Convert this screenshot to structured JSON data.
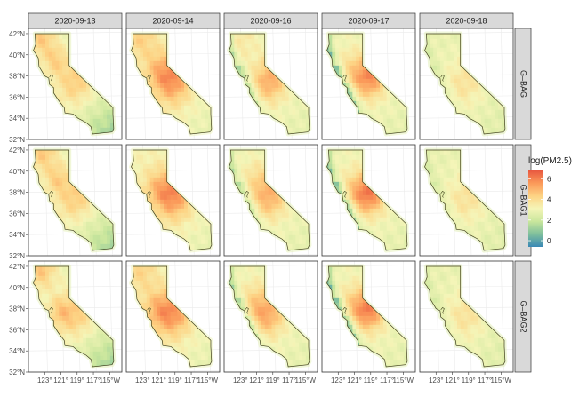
{
  "chart_data": {
    "type": "heatmap",
    "columns": [
      "2020-09-13",
      "2020-09-14",
      "2020-09-16",
      "2020-09-17",
      "2020-09-18"
    ],
    "rows": [
      "G–BAG",
      "G–BAG1",
      "G–BAG2"
    ],
    "y_ticks": [
      "42°N",
      "40°N",
      "38°N",
      "36°N",
      "34°N",
      "32°N"
    ],
    "y_tick_values": [
      42,
      40,
      38,
      36,
      34,
      32
    ],
    "x_ticks": [
      "123°",
      "121°",
      "119°",
      "117°",
      "115°W"
    ],
    "x_tick_values": [
      -123,
      -121,
      -119,
      -117,
      -115
    ],
    "xlim": [
      -125,
      -113.5
    ],
    "ylim": [
      32,
      42.5
    ],
    "legend": {
      "title": "log(PM2.5)",
      "ticks": [
        "0",
        "2",
        "4",
        "6"
      ],
      "tick_values": [
        0,
        2,
        4,
        6
      ],
      "range": [
        -0.6,
        6.8
      ],
      "colors": [
        "#3a88b5",
        "#7fbf9c",
        "#c9e69c",
        "#f5f5b8",
        "#fdd384",
        "#fb9a5a",
        "#e8573f"
      ]
    },
    "panels": [
      {
        "row": 0,
        "col": 0,
        "base": 2.9,
        "south": 2.0,
        "coast": 0,
        "blobs": [
          [
            -119.3,
            37.4,
            1.5,
            1.6
          ],
          [
            -123.5,
            41.7,
            1.6,
            1.3
          ],
          [
            -121.7,
            39.5,
            1.2,
            1.0
          ]
        ]
      },
      {
        "row": 0,
        "col": 1,
        "base": 3.2,
        "south": 0.6,
        "coast": 0,
        "blobs": [
          [
            -119.3,
            37.5,
            2.3,
            1.5
          ],
          [
            -121.0,
            38.6,
            1.2,
            1.3
          ],
          [
            -123.2,
            41.6,
            1.1,
            1.4
          ]
        ]
      },
      {
        "row": 0,
        "col": 2,
        "base": 3.0,
        "south": 0.4,
        "coast": 1.8,
        "blobs": [
          [
            -119.4,
            37.6,
            2.2,
            1.4
          ],
          [
            -123.0,
            41.5,
            0.6,
            1.4
          ]
        ]
      },
      {
        "row": 0,
        "col": 3,
        "base": 3.0,
        "south": 0.4,
        "coast": 2.6,
        "blobs": [
          [
            -119.1,
            37.8,
            2.6,
            1.3
          ],
          [
            -121.1,
            38.5,
            1.1,
            1.3
          ]
        ]
      },
      {
        "row": 0,
        "col": 4,
        "base": 2.8,
        "south": 0.3,
        "coast": 0.6,
        "blobs": [
          [
            -119.5,
            37.4,
            1.0,
            1.6
          ]
        ]
      },
      {
        "row": 1,
        "col": 0,
        "base": 2.9,
        "south": 1.9,
        "coast": 0,
        "blobs": [
          [
            -119.3,
            37.5,
            1.5,
            1.6
          ],
          [
            -123.3,
            41.8,
            1.6,
            1.3
          ],
          [
            -121.5,
            39.3,
            1.2,
            1.0
          ]
        ]
      },
      {
        "row": 1,
        "col": 1,
        "base": 3.2,
        "south": 0.6,
        "coast": 0,
        "blobs": [
          [
            -119.2,
            37.6,
            2.4,
            1.5
          ],
          [
            -121.1,
            38.5,
            1.2,
            1.3
          ]
        ]
      },
      {
        "row": 1,
        "col": 2,
        "base": 3.0,
        "south": 0.4,
        "coast": 1.6,
        "blobs": [
          [
            -119.4,
            37.6,
            2.0,
            1.4
          ],
          [
            -121.0,
            39.3,
            0.8,
            1.2
          ]
        ]
      },
      {
        "row": 1,
        "col": 3,
        "base": 3.0,
        "south": 0.4,
        "coast": 2.4,
        "blobs": [
          [
            -119.1,
            37.8,
            2.7,
            1.3
          ],
          [
            -120.8,
            38.3,
            1.2,
            1.3
          ]
        ]
      },
      {
        "row": 1,
        "col": 4,
        "base": 2.8,
        "south": 0.3,
        "coast": 0.6,
        "blobs": [
          [
            -119.3,
            37.4,
            1.0,
            1.6
          ]
        ]
      },
      {
        "row": 2,
        "col": 0,
        "base": 2.9,
        "south": 1.9,
        "coast": 0,
        "blobs": [
          [
            -119.3,
            37.4,
            1.5,
            1.6
          ],
          [
            -123.5,
            41.7,
            1.7,
            1.3
          ],
          [
            -121.2,
            37.8,
            1.1,
            1.0
          ]
        ]
      },
      {
        "row": 2,
        "col": 1,
        "base": 3.2,
        "south": 0.6,
        "coast": 0,
        "blobs": [
          [
            -119.3,
            37.5,
            2.3,
            1.5
          ],
          [
            -121.3,
            38.0,
            1.2,
            1.3
          ],
          [
            -123.2,
            41.6,
            1.0,
            1.4
          ]
        ]
      },
      {
        "row": 2,
        "col": 2,
        "base": 3.0,
        "south": 0.4,
        "coast": 1.9,
        "blobs": [
          [
            -119.6,
            37.4,
            2.0,
            1.4
          ],
          [
            -121.2,
            38.7,
            1.0,
            1.3
          ]
        ]
      },
      {
        "row": 2,
        "col": 3,
        "base": 3.0,
        "south": 0.4,
        "coast": 2.6,
        "blobs": [
          [
            -119.2,
            37.8,
            2.7,
            1.3
          ],
          [
            -121.0,
            38.5,
            1.1,
            1.3
          ]
        ]
      },
      {
        "row": 2,
        "col": 4,
        "base": 2.8,
        "south": 0.3,
        "coast": 0.6,
        "blobs": [
          [
            -119.4,
            37.3,
            1.0,
            1.6
          ]
        ]
      }
    ]
  }
}
